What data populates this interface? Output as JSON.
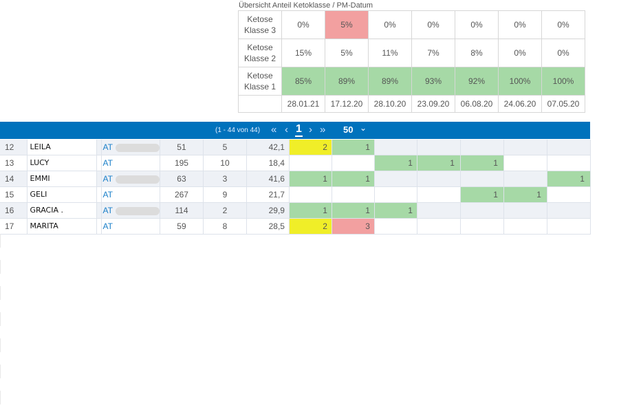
{
  "summary": {
    "title": "Übersicht Anteil Ketoklasse / PM-Datum",
    "rows": [
      {
        "label_line1": "Ketose",
        "label_line2": "Klasse 3",
        "values": [
          "0%",
          "5%",
          "0%",
          "0%",
          "0%",
          "0%",
          "0%"
        ],
        "highlight": [
          null,
          "red",
          null,
          null,
          null,
          null,
          null
        ]
      },
      {
        "label_line1": "Ketose",
        "label_line2": "Klasse 2",
        "values": [
          "15%",
          "5%",
          "11%",
          "7%",
          "8%",
          "0%",
          "0%"
        ],
        "highlight": [
          null,
          null,
          null,
          null,
          null,
          null,
          null
        ]
      },
      {
        "label_line1": "Ketose",
        "label_line2": "Klasse 1",
        "values": [
          "85%",
          "89%",
          "89%",
          "93%",
          "92%",
          "100%",
          "100%"
        ],
        "highlight": [
          "green",
          "green",
          "green",
          "green",
          "green",
          "green",
          "green"
        ]
      }
    ],
    "dates": [
      "28.01.21",
      "17.12.20",
      "28.10.20",
      "23.09.20",
      "06.08.20",
      "24.06.20",
      "07.05.20"
    ]
  },
  "pager": {
    "count_text": "(1 - 44 von 44)",
    "current_page": "1",
    "page_size": "50",
    "icons": {
      "first": "double-chevron-left-icon",
      "prev": "chevron-left-icon",
      "next": "chevron-right-icon",
      "last": "double-chevron-right-icon",
      "dropdown": "chevron-down-icon"
    }
  },
  "rows": [
    {
      "idx": "12",
      "name": "LEILA",
      "at": "AT",
      "v1": "51",
      "v2": "5",
      "v3": "42,1",
      "cells": [
        "2",
        "1",
        "",
        "",
        "",
        "",
        ""
      ],
      "colors": [
        "yellow",
        "green",
        "",
        "",
        "",
        "",
        ""
      ]
    },
    {
      "idx": "13",
      "name": "LUCY",
      "at": "AT",
      "v1": "195",
      "v2": "10",
      "v3": "18,4",
      "cells": [
        "",
        "",
        "1",
        "1",
        "1",
        "",
        ""
      ],
      "colors": [
        "",
        "",
        "green",
        "green",
        "green",
        "",
        ""
      ]
    },
    {
      "idx": "14",
      "name": "EMMI",
      "at": "AT",
      "v1": "63",
      "v2": "3",
      "v3": "41,6",
      "cells": [
        "1",
        "1",
        "",
        "",
        "",
        "",
        "1"
      ],
      "colors": [
        "green",
        "green",
        "",
        "",
        "",
        "",
        "green"
      ]
    },
    {
      "idx": "15",
      "name": "GELI",
      "at": "AT",
      "v1": "267",
      "v2": "9",
      "v3": "21,7",
      "cells": [
        "",
        "",
        "",
        "",
        "1",
        "1",
        ""
      ],
      "colors": [
        "",
        "",
        "",
        "",
        "green",
        "green",
        ""
      ]
    },
    {
      "idx": "16",
      "name": "GRACIA .",
      "at": "AT",
      "v1": "114",
      "v2": "2",
      "v3": "29,9",
      "cells": [
        "1",
        "1",
        "1",
        "",
        "",
        "",
        ""
      ],
      "colors": [
        "green",
        "green",
        "green",
        "",
        "",
        "",
        ""
      ]
    },
    {
      "idx": "17",
      "name": "MARITA",
      "at": "AT",
      "v1": "59",
      "v2": "8",
      "v3": "28,5",
      "cells": [
        "2",
        "3",
        "",
        "",
        "",
        "",
        ""
      ],
      "colors": [
        "yellow",
        "red",
        "",
        "",
        "",
        "",
        ""
      ]
    }
  ],
  "colors": {
    "green": "#a6d9a6",
    "red": "#f2a0a0",
    "yellow": "#f0ee28",
    "pager_bg": "#0072bc",
    "link": "#1a7fc9"
  }
}
